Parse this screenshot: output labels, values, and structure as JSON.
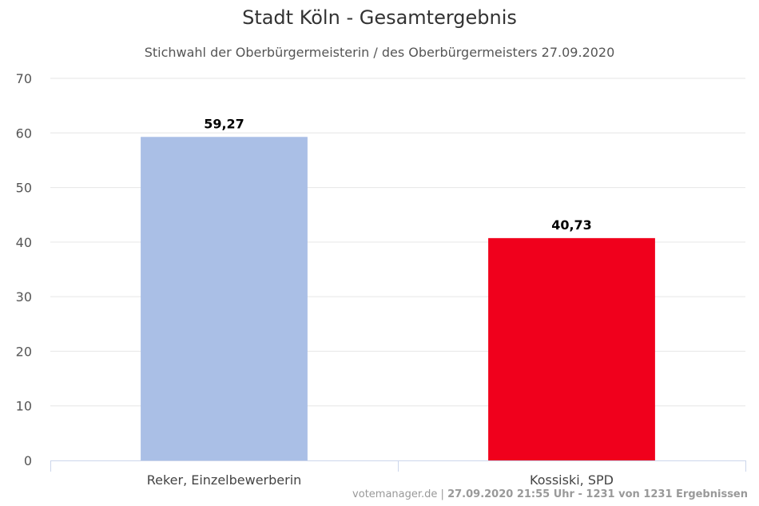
{
  "chart_data": {
    "type": "bar",
    "title": "Stadt Köln - Gesamtergebnis",
    "subtitle": "Stichwahl der Oberbürgermeisterin / des Oberbürgermeisters 27.09.2020",
    "categories": [
      "Reker, Einzelbewerberin",
      "Kossiski, SPD"
    ],
    "values": [
      59.27,
      40.73
    ],
    "data_labels": [
      "59,27",
      "40,73"
    ],
    "colors": [
      "#aabfe6",
      "#f0001c"
    ],
    "ylim": [
      0,
      70
    ],
    "yticks": [
      0,
      10,
      20,
      30,
      40,
      50,
      60,
      70
    ],
    "grid": true,
    "legend": "none"
  },
  "footer": {
    "source": "votemanager.de",
    "separator": " | ",
    "status": "27.09.2020 21:55 Uhr - 1231 von 1231 Ergebnissen"
  }
}
